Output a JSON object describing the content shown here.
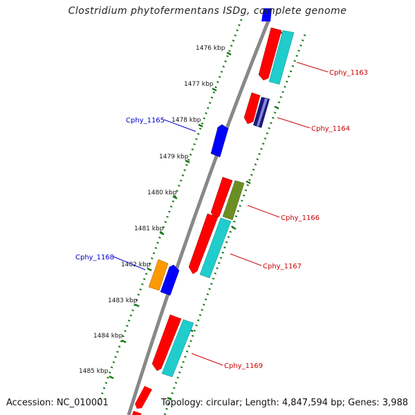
{
  "title": "Clostridium phytofermentans ISDg, complete genome",
  "accession": "Accession: NC_010001",
  "topology": "Topology: circular; Length: 4,847,594 bp; Genes: 3,988",
  "ticks": [
    "1476 kbp",
    "1477 kbp",
    "1478 kbp",
    "1479 kbp",
    "1480 kbp",
    "1481 kbp",
    "1482 kbp",
    "1483 kbp",
    "1484 kbp",
    "1485 kbp"
  ],
  "gene_labels": {
    "cphy_1163": "Cphy_1163",
    "cphy_1164": "Cphy_1164",
    "cphy_1165": "Cphy_1165",
    "cphy_1166": "Cphy_1166",
    "cphy_1167": "Cphy_1167",
    "cphy_1168": "Cphy_1168",
    "cphy_1169": "Cphy_1169"
  },
  "colors": {
    "backbone": "#888888",
    "tick": "#1a7a1a",
    "cds": "#ff0000",
    "rna": "#20cccc",
    "reverse": "#0000ff",
    "orange": "#ff9900",
    "olive": "#6b8e23",
    "navy": "#1a1a7a",
    "label_forward": "#cc0000",
    "label_reverse": "#0000cc"
  }
}
